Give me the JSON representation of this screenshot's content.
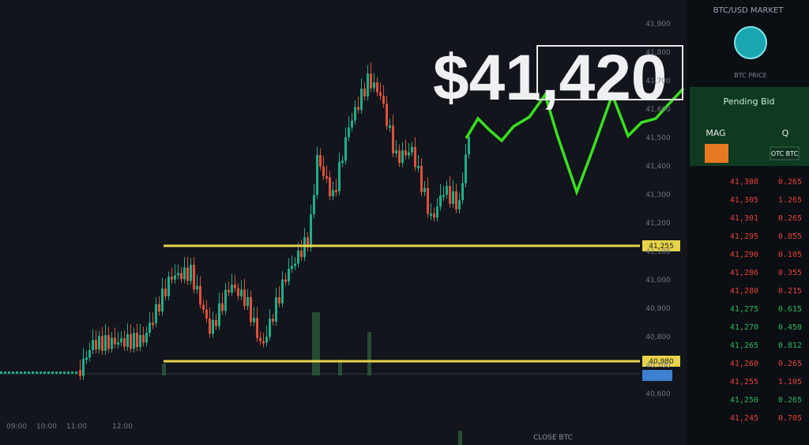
{
  "price": "$41,420",
  "header": "BTC/USD MARKET",
  "logo_caption": "BTC PRICE",
  "ticker": {
    "label": "Pending Bid",
    "left": "MAG",
    "right": "Q",
    "tag": "OTC BTC"
  },
  "price_axis": [
    "41,900",
    "41,800",
    "41,700",
    "41,600",
    "41,500",
    "41,400",
    "41,300",
    "41,200",
    "41,100",
    "41,000",
    "40,900",
    "40,800",
    "40,700",
    "40,600"
  ],
  "levels": [
    "41,255",
    "40,980"
  ],
  "time_labels": [
    "09:00",
    "10:00",
    "11:00",
    "12:00"
  ],
  "footer": "CLOSE BTC",
  "order_book": {
    "rows": [
      {
        "price": "41,308",
        "size": "0.265",
        "side": "sell"
      },
      {
        "price": "41,305",
        "size": "1.265",
        "side": "sell"
      },
      {
        "price": "41,301",
        "size": "0.265",
        "side": "sell"
      },
      {
        "price": "41,295",
        "size": "0.855",
        "side": "sell"
      },
      {
        "price": "41,290",
        "size": "0.105",
        "side": "sell"
      },
      {
        "price": "41,286",
        "size": "0.355",
        "side": "sell"
      },
      {
        "price": "41,280",
        "size": "0.215",
        "side": "sell"
      },
      {
        "price": "41,275",
        "size": "0.615",
        "side": "buy"
      },
      {
        "price": "41,270",
        "size": "0.450",
        "side": "buy"
      },
      {
        "price": "41,265",
        "size": "0.812",
        "side": "buy"
      },
      {
        "price": "41,260",
        "size": "0.265",
        "side": "sell"
      },
      {
        "price": "41,255",
        "size": "1.105",
        "side": "sell"
      },
      {
        "price": "41,250",
        "size": "0.265",
        "side": "buy"
      },
      {
        "price": "41,245",
        "size": "0.705",
        "side": "sell"
      }
    ]
  }
}
